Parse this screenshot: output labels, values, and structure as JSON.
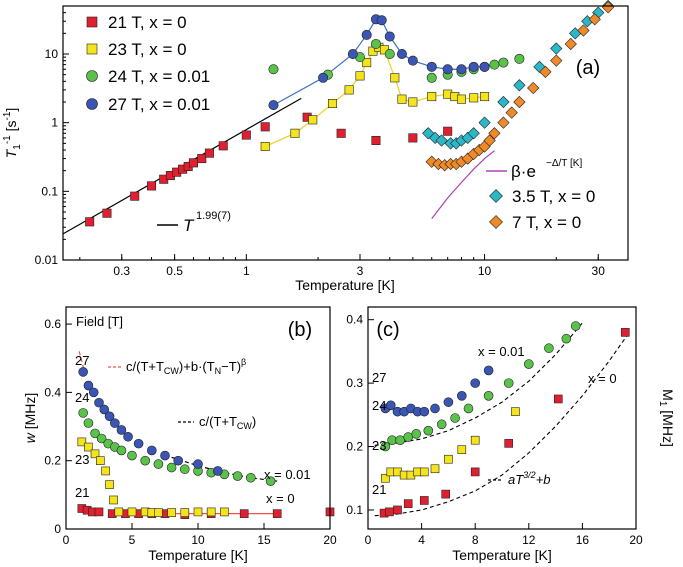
{
  "figure": {
    "colors": {
      "red": "#e02030",
      "yellow": "#f5e41a",
      "green": "#5ac24b",
      "blue": "#3a55b4",
      "cyan": "#2ab7c8",
      "orange": "#f08a28",
      "magenta": "#b040b0",
      "blueline": "#3a6fc0",
      "yellowline": "#f0d020",
      "redline": "#f05050"
    }
  },
  "chart_data": [
    {
      "panel": "(a)",
      "type": "scatter",
      "xlabel": "Temperature [K]",
      "ylabel": "T₁⁻¹ [s⁻¹]",
      "xscale": "log",
      "yscale": "log",
      "xlim": [
        0.17,
        40
      ],
      "ylim": [
        0.01,
        50
      ],
      "xticks": [
        0.3,
        0.5,
        1,
        3,
        10,
        30
      ],
      "xtick_labels": [
        "0.3",
        "0.5",
        "1",
        "3",
        "10",
        "30"
      ],
      "yticks": [
        0.01,
        0.1,
        1,
        10
      ],
      "ytick_labels": [
        "0.01",
        "0.1",
        "1",
        "10"
      ],
      "series": [
        {
          "name": "21 T, x = 0",
          "marker": "square",
          "color": "red",
          "x": [
            0.22,
            0.26,
            0.34,
            0.4,
            0.45,
            0.48,
            0.51,
            0.54,
            0.57,
            0.6,
            0.65,
            0.7,
            0.8,
            1.0,
            1.2,
            1.8,
            2.5,
            3.5,
            5.0,
            7.0
          ],
          "y": [
            0.036,
            0.048,
            0.085,
            0.12,
            0.15,
            0.17,
            0.19,
            0.21,
            0.23,
            0.26,
            0.3,
            0.36,
            0.46,
            0.66,
            0.87,
            1.2,
            0.7,
            0.55,
            0.6,
            0.75
          ]
        },
        {
          "name": "23 T, x = 0",
          "marker": "square",
          "color": "yellow",
          "x": [
            1.2,
            1.6,
            1.9,
            2.3,
            2.7,
            3.0,
            3.2,
            3.4,
            3.6,
            3.8,
            4.2,
            4.5,
            5.0,
            6.0,
            7.0,
            7.5,
            8.0,
            9.0,
            10.0
          ],
          "y": [
            0.45,
            0.7,
            1.1,
            1.9,
            3.0,
            4.8,
            7.5,
            11.0,
            12.5,
            11.5,
            4.5,
            2.2,
            2.0,
            2.4,
            2.6,
            2.4,
            2.2,
            2.3,
            2.4
          ]
        },
        {
          "name": "24 T, x = 0.01",
          "marker": "circle",
          "color": "green",
          "x": [
            1.3,
            2.2,
            3.0,
            3.5,
            4.0,
            6.0,
            7.0,
            8.0,
            9.0,
            10.0,
            11.0,
            12.0,
            14.0
          ],
          "y": [
            6.0,
            5.0,
            9.0,
            14.0,
            10.0,
            4.5,
            5.0,
            5.5,
            6.0,
            6.5,
            7.0,
            7.5,
            8.5
          ]
        },
        {
          "name": "27 T, x = 0.01",
          "marker": "circle",
          "color": "blue",
          "x": [
            1.3,
            2.1,
            2.8,
            3.2,
            3.5,
            3.7,
            4.0,
            4.5,
            5.0,
            6.0,
            7.0,
            8.0,
            9.0,
            10.0
          ],
          "y": [
            1.8,
            4.5,
            10.0,
            19.0,
            32.0,
            31.0,
            18.0,
            10.0,
            8.0,
            6.5,
            6.0,
            6.0,
            6.5,
            6.5
          ]
        },
        {
          "name": "3.5 T, x = 0",
          "marker": "diamond",
          "color": "cyan",
          "x": [
            5.8,
            6.2,
            6.6,
            7.2,
            7.6,
            8.0,
            8.5,
            9.0,
            10.0,
            12.0,
            14.0,
            17.0,
            20.0,
            24.0,
            27.0,
            30.0,
            33.0
          ],
          "y": [
            0.7,
            0.6,
            0.55,
            0.5,
            0.5,
            0.55,
            0.6,
            0.7,
            1.0,
            2.0,
            3.5,
            6.5,
            12.0,
            20.0,
            30.0,
            40.0,
            50.0
          ]
        },
        {
          "name": "7 T,     x = 0",
          "marker": "diamond",
          "color": "orange",
          "x": [
            6.0,
            6.4,
            6.8,
            7.2,
            7.6,
            8.0,
            8.5,
            9.0,
            9.5,
            10.0,
            10.5,
            11.0,
            12.0,
            13.0,
            14.0,
            16.0,
            18.0,
            20.0,
            23.0,
            26.0,
            29.0,
            33.0
          ],
          "y": [
            0.27,
            0.25,
            0.24,
            0.25,
            0.25,
            0.27,
            0.3,
            0.35,
            0.4,
            0.45,
            0.55,
            0.7,
            1.0,
            1.4,
            2.0,
            3.2,
            5.5,
            8.0,
            14.0,
            22.0,
            32.0,
            48.0
          ]
        }
      ],
      "lines": [
        {
          "label": "T^1.99(7)",
          "color": "black",
          "x": [
            0.17,
            1.7
          ],
          "y": [
            0.024,
            2.26
          ]
        },
        {
          "label": "β·e^−Δ/T [K]",
          "color": "magenta",
          "x": [
            6.0,
            7.0,
            8.0,
            9.0,
            10.0,
            11.0
          ],
          "y": [
            0.04,
            0.08,
            0.135,
            0.21,
            0.3,
            0.39
          ]
        }
      ],
      "legend": [
        "21 T, x = 0",
        "23 T, x = 0",
        "24 T, x = 0.01",
        "27 T, x = 0.01"
      ],
      "legend_lower_right": [
        "3.5 T, x = 0",
        "7 T,     x = 0"
      ],
      "fit_label_main": "β·e",
      "fit_label_exponent": "−Δ/T [K]",
      "power_label_main": "T",
      "power_label_exponent": "1.99(7)"
    },
    {
      "panel": "(b)",
      "type": "scatter",
      "xlabel": "Temperature [K]",
      "ylabel": "w [MHz]",
      "xlim": [
        0,
        20
      ],
      "ylim": [
        0,
        0.65
      ],
      "xticks": [
        0,
        5,
        10,
        15,
        20
      ],
      "yticks": [
        0,
        0.2,
        0.4,
        0.6
      ],
      "ytick_labels": [
        "0",
        "0.2",
        "0.4",
        "0.6"
      ],
      "header": "Field [T]",
      "field_labels": [
        "27",
        "24",
        "23",
        "21"
      ],
      "curve_labels": [
        "x = 0.01",
        "x = 0"
      ],
      "fit_label_1_main": "c/(T+T",
      "fit_label_1_sub": "CW",
      "fit_label_1_mid": ")+b·(T",
      "fit_label_1_sub2": "N",
      "fit_label_1_tail": "−T)",
      "fit_label_1_sup": "β",
      "fit_label_2_main": "c/(T+T",
      "fit_label_2_sub": "CW",
      "fit_label_2_tail": ")",
      "series": [
        {
          "name": "21",
          "marker": "square",
          "color": "red",
          "x": [
            1.2,
            1.6,
            2.0,
            2.5,
            3.5,
            4.5,
            5.5,
            6.5,
            7.5,
            9.0,
            11.0,
            13.5,
            16.0,
            20.0
          ],
          "y": [
            0.06,
            0.055,
            0.05,
            0.05,
            0.045,
            0.045,
            0.045,
            0.045,
            0.045,
            0.042,
            0.045,
            0.045,
            0.045,
            0.05
          ]
        },
        {
          "name": "23",
          "marker": "square",
          "color": "yellow",
          "x": [
            1.2,
            1.7,
            2.2,
            2.6,
            3.0,
            3.3,
            3.6,
            4.0,
            5.0,
            6.0,
            6.5,
            7.0,
            8.0,
            9.0,
            10.0,
            11.0,
            12.0
          ],
          "y": [
            0.255,
            0.24,
            0.22,
            0.2,
            0.17,
            0.13,
            0.085,
            0.05,
            0.05,
            0.05,
            0.048,
            0.048,
            0.048,
            0.048,
            0.05,
            0.05,
            0.05
          ]
        },
        {
          "name": "24",
          "marker": "circle",
          "color": "green",
          "x": [
            1.3,
            1.7,
            2.2,
            2.7,
            3.2,
            3.7,
            4.2,
            5.0,
            6.0,
            7.0,
            8.0,
            9.0,
            10.0,
            11.0,
            12.0,
            13.0,
            14.0,
            15.5
          ],
          "y": [
            0.34,
            0.31,
            0.28,
            0.265,
            0.25,
            0.24,
            0.23,
            0.215,
            0.2,
            0.19,
            0.18,
            0.175,
            0.17,
            0.165,
            0.16,
            0.155,
            0.15,
            0.14
          ]
        },
        {
          "name": "27",
          "marker": "circle",
          "color": "blue",
          "x": [
            1.3,
            1.7,
            2.1,
            2.5,
            2.9,
            3.3,
            3.7,
            4.2,
            4.7,
            5.5,
            6.5,
            7.5,
            8.5,
            10.0,
            11.5
          ],
          "y": [
            0.46,
            0.42,
            0.4,
            0.37,
            0.35,
            0.33,
            0.31,
            0.29,
            0.27,
            0.25,
            0.23,
            0.215,
            0.2,
            0.19,
            0.17
          ]
        }
      ],
      "lines": [
        {
          "label": "c/(T+T_CW)+b·(T_N−T)^β",
          "color": "redline",
          "dash": true,
          "x": [
            1.0,
            1.2,
            1.4
          ],
          "y": [
            0.52,
            0.49,
            0.46
          ]
        },
        {
          "label": "c/(T+T_CW)",
          "color": "black",
          "dash": true,
          "x": [
            8.0,
            10.0,
            12.0,
            14.0,
            16.0
          ],
          "y": [
            0.21,
            0.185,
            0.165,
            0.15,
            0.14
          ]
        },
        {
          "label": "x = 0",
          "color": "redline",
          "dash": false,
          "x": [
            3.5,
            16.0
          ],
          "y": [
            0.045,
            0.045
          ]
        }
      ]
    },
    {
      "panel": "(c)",
      "type": "scatter",
      "xlabel": "Temperature [K]",
      "ylabel": "M₁ [MHz]",
      "xlim": [
        0,
        20
      ],
      "ylim": [
        0.07,
        0.42
      ],
      "xticks": [
        0,
        4,
        8,
        12,
        16,
        20
      ],
      "yticks": [
        0.1,
        0.2,
        0.3,
        0.4
      ],
      "ytick_labels": [
        "0.1",
        "0.2",
        "0.3",
        "0.4"
      ],
      "field_labels": [
        "27",
        "24",
        "23",
        "21"
      ],
      "curve_labels": [
        "x = 0.01",
        "x = 0"
      ],
      "fit_label_main": "aT",
      "fit_label_sup": "3/2",
      "fit_label_tail": "+b",
      "series": [
        {
          "name": "21",
          "marker": "square",
          "color": "red",
          "x": [
            1.2,
            1.6,
            2.2,
            3.0,
            4.2,
            5.8,
            8.0,
            10.5,
            14.2,
            19.2
          ],
          "y": [
            0.095,
            0.097,
            0.1,
            0.11,
            0.115,
            0.125,
            0.16,
            0.205,
            0.275,
            0.38
          ]
        },
        {
          "name": "23",
          "marker": "square",
          "color": "yellow",
          "x": [
            1.3,
            1.7,
            2.2,
            2.7,
            3.2,
            3.7,
            4.2,
            5.0,
            6.0,
            7.0,
            8.0,
            11.0
          ],
          "y": [
            0.15,
            0.16,
            0.16,
            0.155,
            0.155,
            0.16,
            0.16,
            0.165,
            0.18,
            0.195,
            0.21,
            0.255
          ]
        },
        {
          "name": "24",
          "marker": "circle",
          "color": "green",
          "x": [
            1.3,
            1.8,
            2.4,
            3.0,
            3.6,
            4.5,
            5.5,
            6.5,
            7.5,
            9.0,
            10.5,
            12.0,
            13.5,
            14.8,
            15.5
          ],
          "y": [
            0.2,
            0.21,
            0.21,
            0.215,
            0.22,
            0.225,
            0.235,
            0.245,
            0.26,
            0.28,
            0.3,
            0.33,
            0.355,
            0.37,
            0.39
          ]
        },
        {
          "name": "27",
          "marker": "circle",
          "color": "blue",
          "x": [
            1.3,
            1.7,
            2.2,
            2.7,
            3.2,
            3.7,
            4.2,
            5.0,
            6.0,
            7.0,
            8.0,
            9.0
          ],
          "y": [
            0.26,
            0.265,
            0.255,
            0.255,
            0.26,
            0.255,
            0.255,
            0.26,
            0.27,
            0.28,
            0.3,
            0.32
          ]
        }
      ],
      "lines": [
        {
          "label": "x = 0.01 fit",
          "color": "black",
          "dash": true,
          "x": [
            0.5,
            2,
            4,
            6,
            8,
            10,
            12,
            14,
            16
          ],
          "y": [
            0.202,
            0.205,
            0.212,
            0.225,
            0.245,
            0.27,
            0.303,
            0.345,
            0.395
          ]
        },
        {
          "label": "x = 0 fit",
          "color": "black",
          "dash": true,
          "x": [
            0.5,
            2,
            4,
            6,
            8,
            10,
            12,
            14,
            16,
            18,
            19.5
          ],
          "y": [
            0.091,
            0.093,
            0.1,
            0.113,
            0.13,
            0.155,
            0.19,
            0.232,
            0.28,
            0.335,
            0.38
          ]
        }
      ]
    }
  ]
}
